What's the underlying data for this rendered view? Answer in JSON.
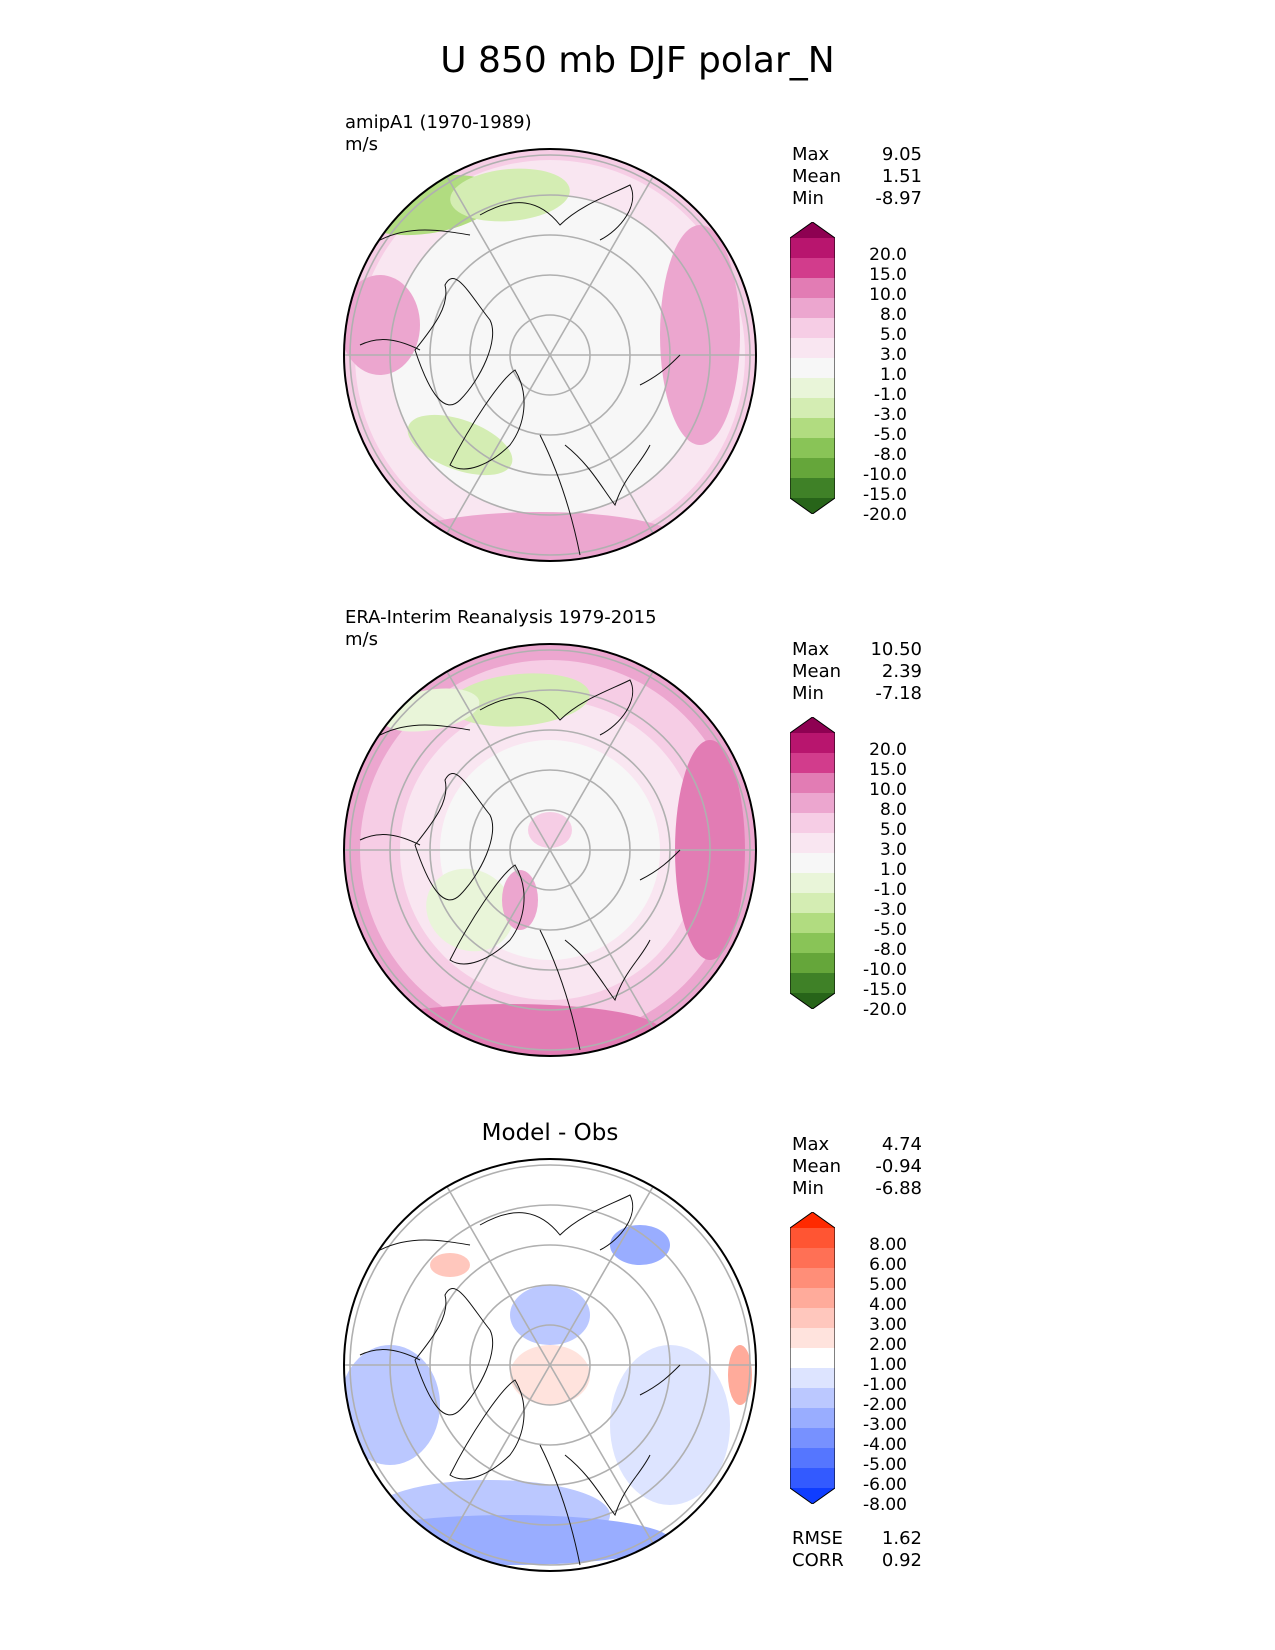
{
  "figure": {
    "title": "U 850 mb DJF polar_N"
  },
  "panels": [
    {
      "id": "model",
      "title_lines": [
        "amipA1 (1970-1989)",
        "m/s"
      ],
      "stats": [
        [
          "Max",
          "9.05"
        ],
        [
          "Mean",
          "1.51"
        ],
        [
          "Min",
          "-8.97"
        ]
      ],
      "palette": "pink-green"
    },
    {
      "id": "obs",
      "title_lines": [
        "ERA-Interim Reanalysis 1979-2015",
        "m/s"
      ],
      "stats": [
        [
          "Max",
          "10.50"
        ],
        [
          "Mean",
          "2.39"
        ],
        [
          "Min",
          "-7.18"
        ]
      ],
      "palette": "pink-green"
    },
    {
      "id": "diff",
      "center_title": "Model - Obs",
      "stats": [
        [
          "Max",
          "4.74"
        ],
        [
          "Mean",
          "-0.94"
        ],
        [
          "Min",
          "-6.88"
        ]
      ],
      "extra_stats": [
        [
          "RMSE",
          "1.62"
        ],
        [
          "CORR",
          "0.92"
        ]
      ],
      "palette": "red-blue"
    }
  ],
  "colorbars": {
    "pink_green": {
      "levels": [
        "20.0",
        "15.0",
        "10.0",
        "8.0",
        "5.0",
        "3.0",
        "1.0",
        "-1.0",
        "-3.0",
        "-5.0",
        "-8.0",
        "-10.0",
        "-15.0",
        "-20.0"
      ],
      "colors": [
        "#8e0152",
        "#b8156e",
        "#d23c8c",
        "#e27cb4",
        "#eca6cf",
        "#f6cde5",
        "#f9e6f1",
        "#f7f7f7",
        "#e9f5d9",
        "#d4edb3",
        "#b1dc80",
        "#89c457",
        "#65a63a",
        "#3f8127",
        "#276419"
      ]
    },
    "red_blue": {
      "levels": [
        "8.00",
        "6.00",
        "5.00",
        "4.00",
        "3.00",
        "2.00",
        "1.00",
        "-1.00",
        "-2.00",
        "-3.00",
        "-4.00",
        "-5.00",
        "-6.00",
        "-8.00"
      ],
      "colors": [
        "#ff2a00",
        "#ff5533",
        "#ff7055",
        "#ff8e78",
        "#ffab9b",
        "#ffc7bd",
        "#ffe3dd",
        "#ffffff",
        "#dde4ff",
        "#bbc8ff",
        "#99adff",
        "#7791ff",
        "#5576ff",
        "#335aff",
        "#0f3dff"
      ]
    }
  }
}
